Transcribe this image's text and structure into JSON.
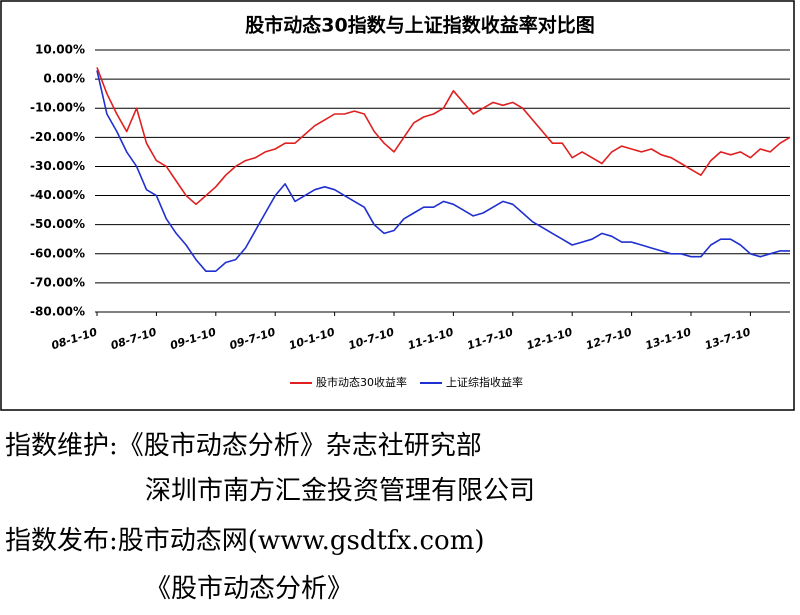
{
  "chart_data": {
    "type": "line",
    "title": "股市动态30指数与上证指数收益率对比图",
    "categories": [
      "08-1-10",
      null,
      null,
      null,
      null,
      null,
      "08-7-10",
      null,
      null,
      null,
      null,
      null,
      "09-1-10",
      null,
      null,
      null,
      null,
      null,
      "09-7-10",
      null,
      null,
      null,
      null,
      null,
      "10-1-10",
      null,
      null,
      null,
      null,
      null,
      "10-7-10",
      null,
      null,
      null,
      null,
      null,
      "11-1-10",
      null,
      null,
      null,
      null,
      null,
      "11-7-10",
      null,
      null,
      null,
      null,
      null,
      "12-1-10",
      null,
      null,
      null,
      null,
      null,
      "12-7-10",
      null,
      null,
      null,
      null,
      null,
      "13-1-10",
      null,
      null,
      null,
      null,
      null,
      "13-7-10",
      null,
      null,
      null,
      null
    ],
    "series": [
      {
        "name": "股市动态30收益率",
        "color": "#e02020",
        "values": [
          4,
          -5,
          -12,
          -18,
          -10,
          -22,
          -28,
          -30,
          -35,
          -40,
          -43,
          -40,
          -37,
          -33,
          -30,
          -28,
          -27,
          -25,
          -24,
          -22,
          -22,
          -19,
          -16,
          -14,
          -12,
          -12,
          -11,
          -12,
          -18,
          -22,
          -25,
          -20,
          -15,
          -13,
          -12,
          -10,
          -4,
          -8,
          -12,
          -10,
          -8,
          -9,
          -8,
          -10,
          -14,
          -18,
          -22,
          -22,
          -27,
          -25,
          -27,
          -29,
          -25,
          -23,
          -24,
          -25,
          -24,
          -26,
          -27,
          -29,
          -31,
          -33,
          -28,
          -25,
          -26,
          -25,
          -27,
          -24,
          -25,
          -22,
          -20
        ]
      },
      {
        "name": "上证综指收益率",
        "color": "#2030d0",
        "values": [
          3,
          -12,
          -18,
          -25,
          -30,
          -38,
          -40,
          -48,
          -53,
          -57,
          -62,
          -66,
          -66,
          -63,
          -62,
          -58,
          -52,
          -46,
          -40,
          -36,
          -42,
          -40,
          -38,
          -37,
          -38,
          -40,
          -42,
          -44,
          -50,
          -53,
          -52,
          -48,
          -46,
          -44,
          -44,
          -42,
          -43,
          -45,
          -47,
          -46,
          -44,
          -42,
          -43,
          -46,
          -49,
          -51,
          -53,
          -55,
          -57,
          -56,
          -55,
          -53,
          -54,
          -56,
          -56,
          -57,
          -58,
          -59,
          -60,
          -60,
          -61,
          -61,
          -57,
          -55,
          -55,
          -57,
          -60,
          -61,
          -60,
          -59,
          -59
        ]
      }
    ],
    "ylim": [
      -80,
      10
    ],
    "yticks": [
      {
        "value": 10,
        "label": "10.00%"
      },
      {
        "value": 0,
        "label": "0.00%"
      },
      {
        "value": -10,
        "label": "-10.00%"
      },
      {
        "value": -20,
        "label": "-20.00%"
      },
      {
        "value": -30,
        "label": "-30.00%"
      },
      {
        "value": -40,
        "label": "-40.00%"
      },
      {
        "value": -50,
        "label": "-50.00%"
      },
      {
        "value": -60,
        "label": "-60.00%"
      },
      {
        "value": -70,
        "label": "-70.00%"
      },
      {
        "value": -80,
        "label": "-80.00%"
      }
    ],
    "grid": true,
    "legend": "bottom"
  },
  "footer": {
    "lines": [
      "指数维护:《股市动态分析》杂志社研究部",
      "深圳市南方汇金投资管理有限公司",
      "指数发布:股市动态网(www.gsdtfx.com)",
      "《股市动态分析》"
    ]
  }
}
